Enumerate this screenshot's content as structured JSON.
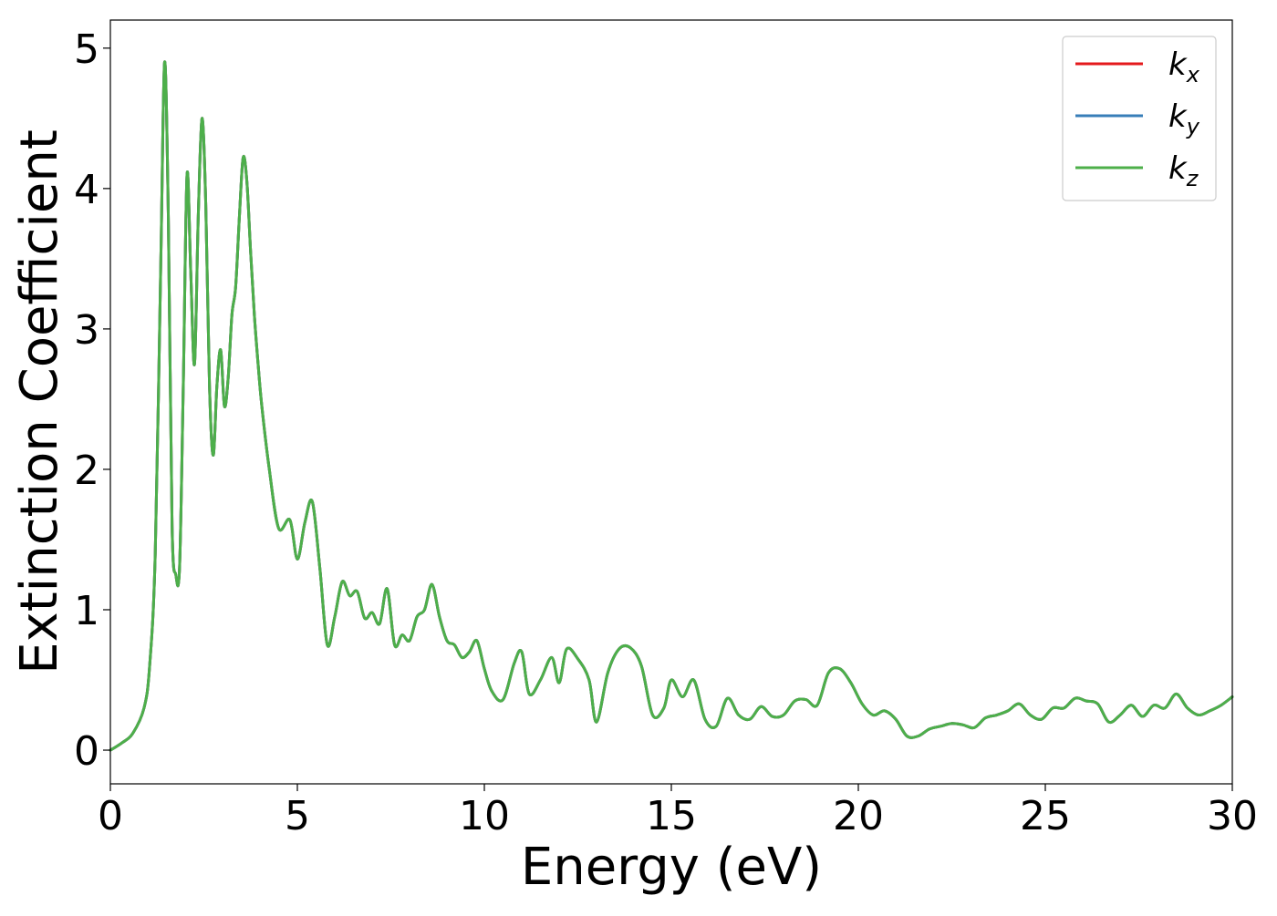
{
  "chart_data": {
    "type": "line",
    "title": "",
    "xlabel": "Energy (eV)",
    "ylabel": "Extinction Coefficient",
    "xlim": [
      0,
      30
    ],
    "ylim": [
      -0.24,
      5.2
    ],
    "xticks": [
      0,
      5,
      10,
      15,
      20,
      25,
      30
    ],
    "yticks": [
      0,
      1,
      2,
      3,
      4,
      5
    ],
    "xtick_labels": [
      "0",
      "5",
      "10",
      "15",
      "20",
      "25",
      "30"
    ],
    "ytick_labels": [
      "0",
      "1",
      "2",
      "3",
      "4",
      "5"
    ],
    "grid": false,
    "legend_position": "top-right",
    "series": [
      {
        "name": "k_x",
        "label_main": "k",
        "label_sub": "x",
        "color": "#e41a1c"
      },
      {
        "name": "k_y",
        "label_main": "k",
        "label_sub": "y",
        "color": "#377eb8"
      },
      {
        "name": "k_z",
        "label_main": "k",
        "label_sub": "z",
        "color": "#4daf4a"
      }
    ],
    "x": [
      0.0,
      0.3,
      0.6,
      0.9,
      1.05,
      1.2,
      1.35,
      1.45,
      1.55,
      1.65,
      1.75,
      1.85,
      1.95,
      2.05,
      2.15,
      2.25,
      2.35,
      2.45,
      2.55,
      2.65,
      2.75,
      2.85,
      2.95,
      3.05,
      3.15,
      3.25,
      3.35,
      3.45,
      3.55,
      3.65,
      3.75,
      3.85,
      3.95,
      4.05,
      4.25,
      4.5,
      4.8,
      5.0,
      5.2,
      5.4,
      5.6,
      5.8,
      6.0,
      6.2,
      6.4,
      6.6,
      6.8,
      7.0,
      7.2,
      7.4,
      7.6,
      7.8,
      8.0,
      8.2,
      8.4,
      8.6,
      8.8,
      9.0,
      9.2,
      9.4,
      9.6,
      9.8,
      10.0,
      10.2,
      10.5,
      10.8,
      11.0,
      11.2,
      11.5,
      11.8,
      12.0,
      12.2,
      12.5,
      12.8,
      13.0,
      13.3,
      13.6,
      13.9,
      14.2,
      14.5,
      14.8,
      15.0,
      15.3,
      15.6,
      15.9,
      16.2,
      16.5,
      16.8,
      17.1,
      17.4,
      17.7,
      18.0,
      18.3,
      18.6,
      18.9,
      19.2,
      19.5,
      19.8,
      20.1,
      20.4,
      20.7,
      21.0,
      21.3,
      21.6,
      21.9,
      22.2,
      22.5,
      22.8,
      23.1,
      23.4,
      23.7,
      24.0,
      24.3,
      24.6,
      24.9,
      25.2,
      25.5,
      25.8,
      26.1,
      26.4,
      26.7,
      27.0,
      27.3,
      27.6,
      27.9,
      28.2,
      28.5,
      28.8,
      29.1,
      29.4,
      29.7,
      30.0
    ],
    "values": [
      0.0,
      0.05,
      0.12,
      0.3,
      0.6,
      1.4,
      3.5,
      4.9,
      3.8,
      1.6,
      1.25,
      1.3,
      2.6,
      4.1,
      3.4,
      2.75,
      3.8,
      4.5,
      3.9,
      2.6,
      2.1,
      2.6,
      2.85,
      2.45,
      2.65,
      3.1,
      3.3,
      3.8,
      4.22,
      4.05,
      3.55,
      3.1,
      2.75,
      2.45,
      2.0,
      1.58,
      1.64,
      1.36,
      1.62,
      1.77,
      1.3,
      0.75,
      0.95,
      1.2,
      1.1,
      1.13,
      0.94,
      0.98,
      0.9,
      1.15,
      0.75,
      0.82,
      0.78,
      0.95,
      1.0,
      1.18,
      0.95,
      0.78,
      0.75,
      0.66,
      0.7,
      0.78,
      0.58,
      0.42,
      0.36,
      0.62,
      0.7,
      0.4,
      0.5,
      0.66,
      0.48,
      0.72,
      0.65,
      0.5,
      0.2,
      0.55,
      0.72,
      0.73,
      0.6,
      0.25,
      0.3,
      0.5,
      0.38,
      0.5,
      0.22,
      0.17,
      0.37,
      0.25,
      0.22,
      0.31,
      0.24,
      0.25,
      0.35,
      0.36,
      0.32,
      0.55,
      0.58,
      0.48,
      0.33,
      0.25,
      0.28,
      0.22,
      0.1,
      0.1,
      0.15,
      0.17,
      0.19,
      0.18,
      0.16,
      0.23,
      0.25,
      0.28,
      0.33,
      0.25,
      0.22,
      0.3,
      0.3,
      0.37,
      0.35,
      0.33,
      0.2,
      0.25,
      0.32,
      0.24,
      0.32,
      0.3,
      0.4,
      0.3,
      0.25,
      0.28,
      0.32,
      0.38
    ]
  }
}
